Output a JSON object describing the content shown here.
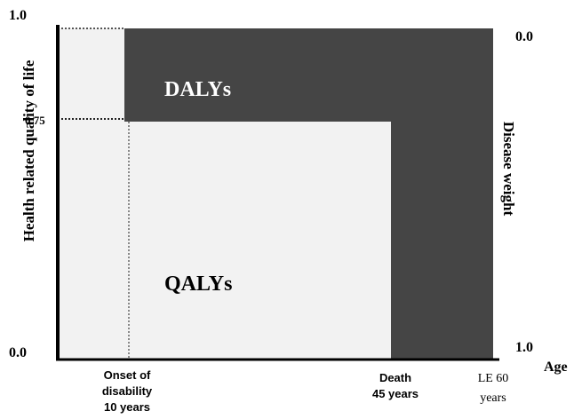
{
  "left_axis": {
    "label": "Health related quality of life",
    "top": "1.0",
    "mid": "0.75",
    "bottom": "0.0"
  },
  "right_axis": {
    "label": "Disease weight",
    "top": "0.0",
    "bottom": "1.0"
  },
  "x_axis": {
    "label": "Age",
    "onset": [
      "Onset of",
      "disability",
      "10 years"
    ],
    "death": [
      "Death",
      "45 years"
    ],
    "le": [
      "LE 60",
      "years"
    ]
  },
  "regions": {
    "dalys": "DALYs",
    "qalys": "QALYs"
  }
}
